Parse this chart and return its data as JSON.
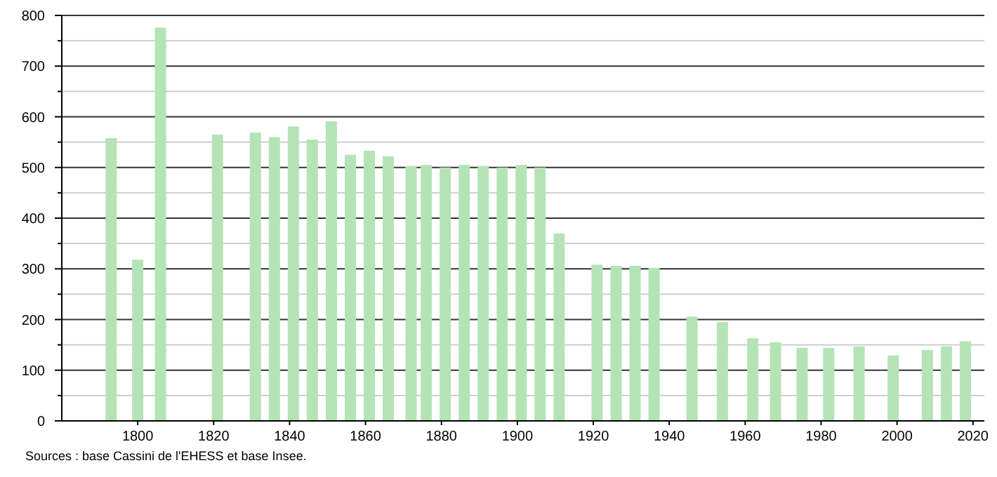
{
  "chart_data": {
    "type": "bar",
    "x": [
      1793,
      1800,
      1806,
      1821,
      1831,
      1836,
      1841,
      1846,
      1851,
      1856,
      1861,
      1866,
      1872,
      1876,
      1881,
      1886,
      1891,
      1896,
      1901,
      1906,
      1911,
      1921,
      1926,
      1931,
      1936,
      1946,
      1954,
      1962,
      1968,
      1975,
      1982,
      1990,
      1999,
      2008,
      2013,
      2018
    ],
    "values": [
      558,
      318,
      776,
      565,
      569,
      560,
      581,
      555,
      591,
      525,
      533,
      522,
      503,
      505,
      500,
      505,
      503,
      500,
      505,
      500,
      370,
      308,
      306,
      306,
      302,
      206,
      195,
      163,
      155,
      144,
      144,
      147,
      129,
      140,
      147,
      157
    ],
    "color": "#b4e4b6",
    "xlim": [
      1780,
      2023
    ],
    "xticks": [
      1800,
      1820,
      1840,
      1860,
      1880,
      1900,
      1920,
      1940,
      1960,
      1980,
      2000,
      2020
    ],
    "ylim": [
      0,
      800
    ],
    "yticks": [
      0,
      {
        "value": 50,
        "label": null
      },
      100,
      {
        "value": 150,
        "label": null
      },
      200,
      {
        "value": 250,
        "label": null
      },
      300,
      {
        "value": 350,
        "label": null
      },
      400,
      {
        "value": 450,
        "label": null
      },
      500,
      {
        "value": 550,
        "label": null
      },
      600,
      {
        "value": 650,
        "label": null
      },
      700,
      {
        "value": 750,
        "label": null
      },
      800
    ],
    "grid": "y",
    "annotations": [
      "Sources : base Cassini de l'EHESS et base Insee."
    ]
  }
}
